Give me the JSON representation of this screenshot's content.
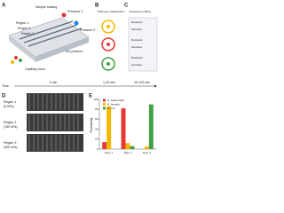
{
  "panel_labels": [
    "A",
    "B",
    "C",
    "D",
    "E"
  ],
  "panel_a": {
    "title": "Sample loading",
    "regions": [
      "Region 1",
      "Region 2",
      "Region 3"
    ],
    "pressures": [
      "Pressure 1",
      "Pressure 2",
      "No pressure"
    ],
    "capillary": "Capillary force"
  },
  "panel_b": {
    "title": "Pathogen classification"
  },
  "panel_c": {
    "title": "Resistant profiling",
    "rows": [
      "Resistant",
      "Sensitive",
      "Resistant",
      "Sensitive",
      "Resistant",
      "Sensitive"
    ]
  },
  "timeline": {
    "label": "Time",
    "marks": [
      "0 min",
      "1-20 min",
      "10-120 min"
    ]
  },
  "panel_d": {
    "regions": [
      {
        "name": "Region 1",
        "pressure": "(0 kPa)"
      },
      {
        "name": "Region 2",
        "pressure": "(150 kPa)"
      },
      {
        "name": "Region 3",
        "pressure": "(300 kPa)"
      }
    ]
  },
  "chart_data": {
    "type": "bar",
    "ylabel": "Probability",
    "categories": [
      "Reg. 1",
      "Reg. 2",
      "Reg. 3"
    ],
    "series": [
      {
        "name": "S. epidermidis",
        "color": "#e53935",
        "values": [
          14,
          82,
          0
        ]
      },
      {
        "name": "E. faecalis",
        "color": "#f5b800",
        "values": [
          86,
          12,
          5
        ]
      },
      {
        "name": "E. coli",
        "color": "#43a047",
        "values": [
          0,
          6,
          90
        ]
      }
    ],
    "ylim": [
      0,
      100
    ],
    "yticks": [
      0,
      20,
      40,
      60,
      80,
      100
    ]
  }
}
